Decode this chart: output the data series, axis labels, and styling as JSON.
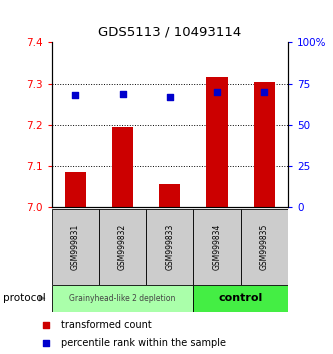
{
  "title": "GDS5113 / 10493114",
  "samples": [
    "GSM999831",
    "GSM999832",
    "GSM999833",
    "GSM999834",
    "GSM999835"
  ],
  "bar_values": [
    7.085,
    7.195,
    7.055,
    7.315,
    7.305
  ],
  "bar_base": 7.0,
  "percentile_values": [
    68,
    69,
    67,
    70,
    70
  ],
  "percentile_scale_max": 100,
  "ylim": [
    7.0,
    7.4
  ],
  "yticks_left": [
    7.0,
    7.1,
    7.2,
    7.3,
    7.4
  ],
  "yticks_right": [
    0,
    25,
    50,
    75,
    100
  ],
  "bar_color": "#cc0000",
  "percentile_color": "#0000cc",
  "group1_label": "Grainyhead-like 2 depletion",
  "group2_label": "control",
  "group1_bg": "#aaffaa",
  "group2_bg": "#44ee44",
  "sample_bg": "#cccccc",
  "legend_bar_label": "transformed count",
  "legend_pct_label": "percentile rank within the sample",
  "protocol_label": "protocol",
  "bar_width": 0.45,
  "figsize": [
    3.33,
    3.54
  ],
  "dpi": 100
}
